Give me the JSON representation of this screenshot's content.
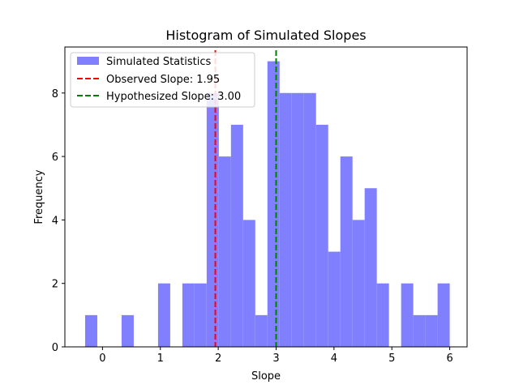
{
  "chart_data": {
    "type": "bar",
    "title": "Histogram of Simulated Slopes",
    "xlabel": "Slope",
    "ylabel": "Frequency",
    "xlim": [
      -0.65,
      6.3
    ],
    "ylim": [
      0,
      9.45
    ],
    "xticks": [
      0,
      1,
      2,
      3,
      4,
      5,
      6
    ],
    "yticks": [
      0,
      2,
      4,
      6,
      8
    ],
    "bin_width": 0.21,
    "bins": [
      {
        "x0": -0.3,
        "value": 1
      },
      {
        "x0": -0.09,
        "value": 0
      },
      {
        "x0": 0.12,
        "value": 0
      },
      {
        "x0": 0.33,
        "value": 1
      },
      {
        "x0": 0.54,
        "value": 0
      },
      {
        "x0": 0.75,
        "value": 0
      },
      {
        "x0": 0.96,
        "value": 2
      },
      {
        "x0": 1.17,
        "value": 0
      },
      {
        "x0": 1.38,
        "value": 2
      },
      {
        "x0": 1.59,
        "value": 2
      },
      {
        "x0": 1.8,
        "value": 8
      },
      {
        "x0": 2.01,
        "value": 6
      },
      {
        "x0": 2.22,
        "value": 7
      },
      {
        "x0": 2.43,
        "value": 4
      },
      {
        "x0": 2.64,
        "value": 1
      },
      {
        "x0": 2.85,
        "value": 9
      },
      {
        "x0": 3.06,
        "value": 8
      },
      {
        "x0": 3.27,
        "value": 8
      },
      {
        "x0": 3.48,
        "value": 8
      },
      {
        "x0": 3.69,
        "value": 7
      },
      {
        "x0": 3.9,
        "value": 3
      },
      {
        "x0": 4.11,
        "value": 6
      },
      {
        "x0": 4.32,
        "value": 4
      },
      {
        "x0": 4.53,
        "value": 5
      },
      {
        "x0": 4.74,
        "value": 2
      },
      {
        "x0": 4.95,
        "value": 0
      },
      {
        "x0": 5.16,
        "value": 2
      },
      {
        "x0": 5.37,
        "value": 1
      },
      {
        "x0": 5.58,
        "value": 1
      },
      {
        "x0": 5.79,
        "value": 2
      }
    ],
    "vlines": [
      {
        "name": "Observed Slope: 1.95",
        "x": 1.95,
        "color": "#ff0000"
      },
      {
        "name": "Hypothesized Slope: 3.00",
        "x": 3.0,
        "color": "#008000"
      }
    ],
    "series": [
      {
        "name": "Simulated Statistics",
        "color": "#8080ff"
      }
    ],
    "legend": {
      "position": "top-left"
    },
    "grid": false
  }
}
